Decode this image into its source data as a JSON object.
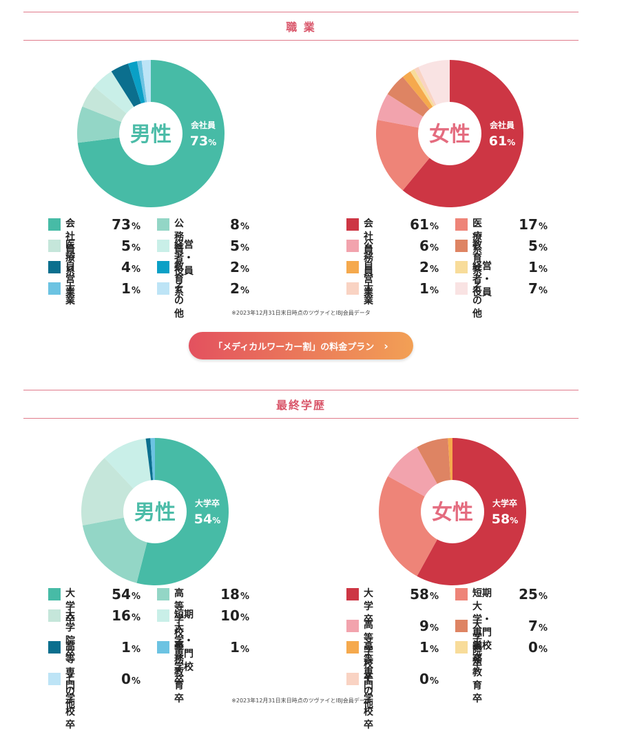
{
  "sections": [
    {
      "title": "職 業"
    },
    {
      "title": "最終学歴"
    }
  ],
  "note": "※2023年12月31日末日時点のツヴァイとIBJ会員データ",
  "cta": {
    "label": "「メディカルワーカー割」の料金プラン",
    "chevron": "chevron-right-icon"
  },
  "chart_data": [
    {
      "type": "pie",
      "section": "職 業",
      "center_label": "男性",
      "callout": {
        "label": "会社員",
        "value": 73
      },
      "colors": {
        "accent": "#4cbca8"
      },
      "slices": [
        {
          "label": "会社員",
          "value": 73,
          "color": "#47bba6"
        },
        {
          "label": "公務員",
          "value": 8,
          "color": "#93d6c6"
        },
        {
          "label": "医療系",
          "value": 5,
          "color": "#c5e6da"
        },
        {
          "label": "経営者・役員",
          "value": 5,
          "color": "#c9efe8"
        },
        {
          "label": "自営業",
          "value": 4,
          "color": "#0b6f8e"
        },
        {
          "label": "教育系",
          "value": 2,
          "color": "#0aa0c6"
        },
        {
          "label": "士業",
          "value": 1,
          "color": "#6cc3e2"
        },
        {
          "label": "その他",
          "value": 2,
          "color": "#bde4f6"
        }
      ]
    },
    {
      "type": "pie",
      "section": "職 業",
      "center_label": "女性",
      "callout": {
        "label": "会社員",
        "value": 61
      },
      "colors": {
        "accent": "#e46c7f"
      },
      "slices": [
        {
          "label": "会社員",
          "value": 61,
          "color": "#cd3644"
        },
        {
          "label": "医療系",
          "value": 17,
          "color": "#ee8478"
        },
        {
          "label": "公務員",
          "value": 6,
          "color": "#f2a3ad"
        },
        {
          "label": "教育系",
          "value": 5,
          "color": "#de8463"
        },
        {
          "label": "自営業",
          "value": 2,
          "color": "#f5a94d"
        },
        {
          "label": "経営者・役員",
          "value": 1,
          "color": "#f8dc9a"
        },
        {
          "label": "士業",
          "value": 1,
          "color": "#f9d3c3"
        },
        {
          "label": "その他",
          "value": 7,
          "color": "#f9e3e3"
        }
      ]
    },
    {
      "type": "pie",
      "section": "最終学歴",
      "center_label": "男性",
      "callout": {
        "label": "大学卒",
        "value": 54
      },
      "colors": {
        "accent": "#4cbca8"
      },
      "slices": [
        {
          "label": "大学卒",
          "value": 54,
          "color": "#47bba6"
        },
        {
          "label": "高等学校卒",
          "value": 18,
          "color": "#93d6c6"
        },
        {
          "label": "大学院卒",
          "value": 16,
          "color": "#c5e6da"
        },
        {
          "label": "短期大学・\n専門学校卒",
          "value": 10,
          "color": "#c9efe8"
        },
        {
          "label": "高等専門\n学校卒",
          "value": 1,
          "color": "#0b6f8e"
        },
        {
          "label": "義務教育卒",
          "value": 1,
          "color": "#6cc3e2"
        },
        {
          "label": "その他",
          "value": 0,
          "color": "#bde4f6"
        }
      ]
    },
    {
      "type": "pie",
      "section": "最終学歴",
      "center_label": "女性",
      "callout": {
        "label": "大学卒",
        "value": 58
      },
      "colors": {
        "accent": "#e46c7f"
      },
      "slices": [
        {
          "label": "大学卒",
          "value": 58,
          "color": "#cd3644"
        },
        {
          "label": "短期大学・\n専門学校卒",
          "value": 25,
          "color": "#ee8478"
        },
        {
          "label": "高等学校卒",
          "value": 9,
          "color": "#f2a3ad"
        },
        {
          "label": "大学院卒",
          "value": 7,
          "color": "#de8463"
        },
        {
          "label": "高等専門\n学校卒",
          "value": 1,
          "color": "#f5a94d"
        },
        {
          "label": "義務教育卒",
          "value": 0,
          "color": "#f8dc9a"
        },
        {
          "label": "その他",
          "value": 0,
          "color": "#f9d3c3"
        }
      ]
    }
  ]
}
